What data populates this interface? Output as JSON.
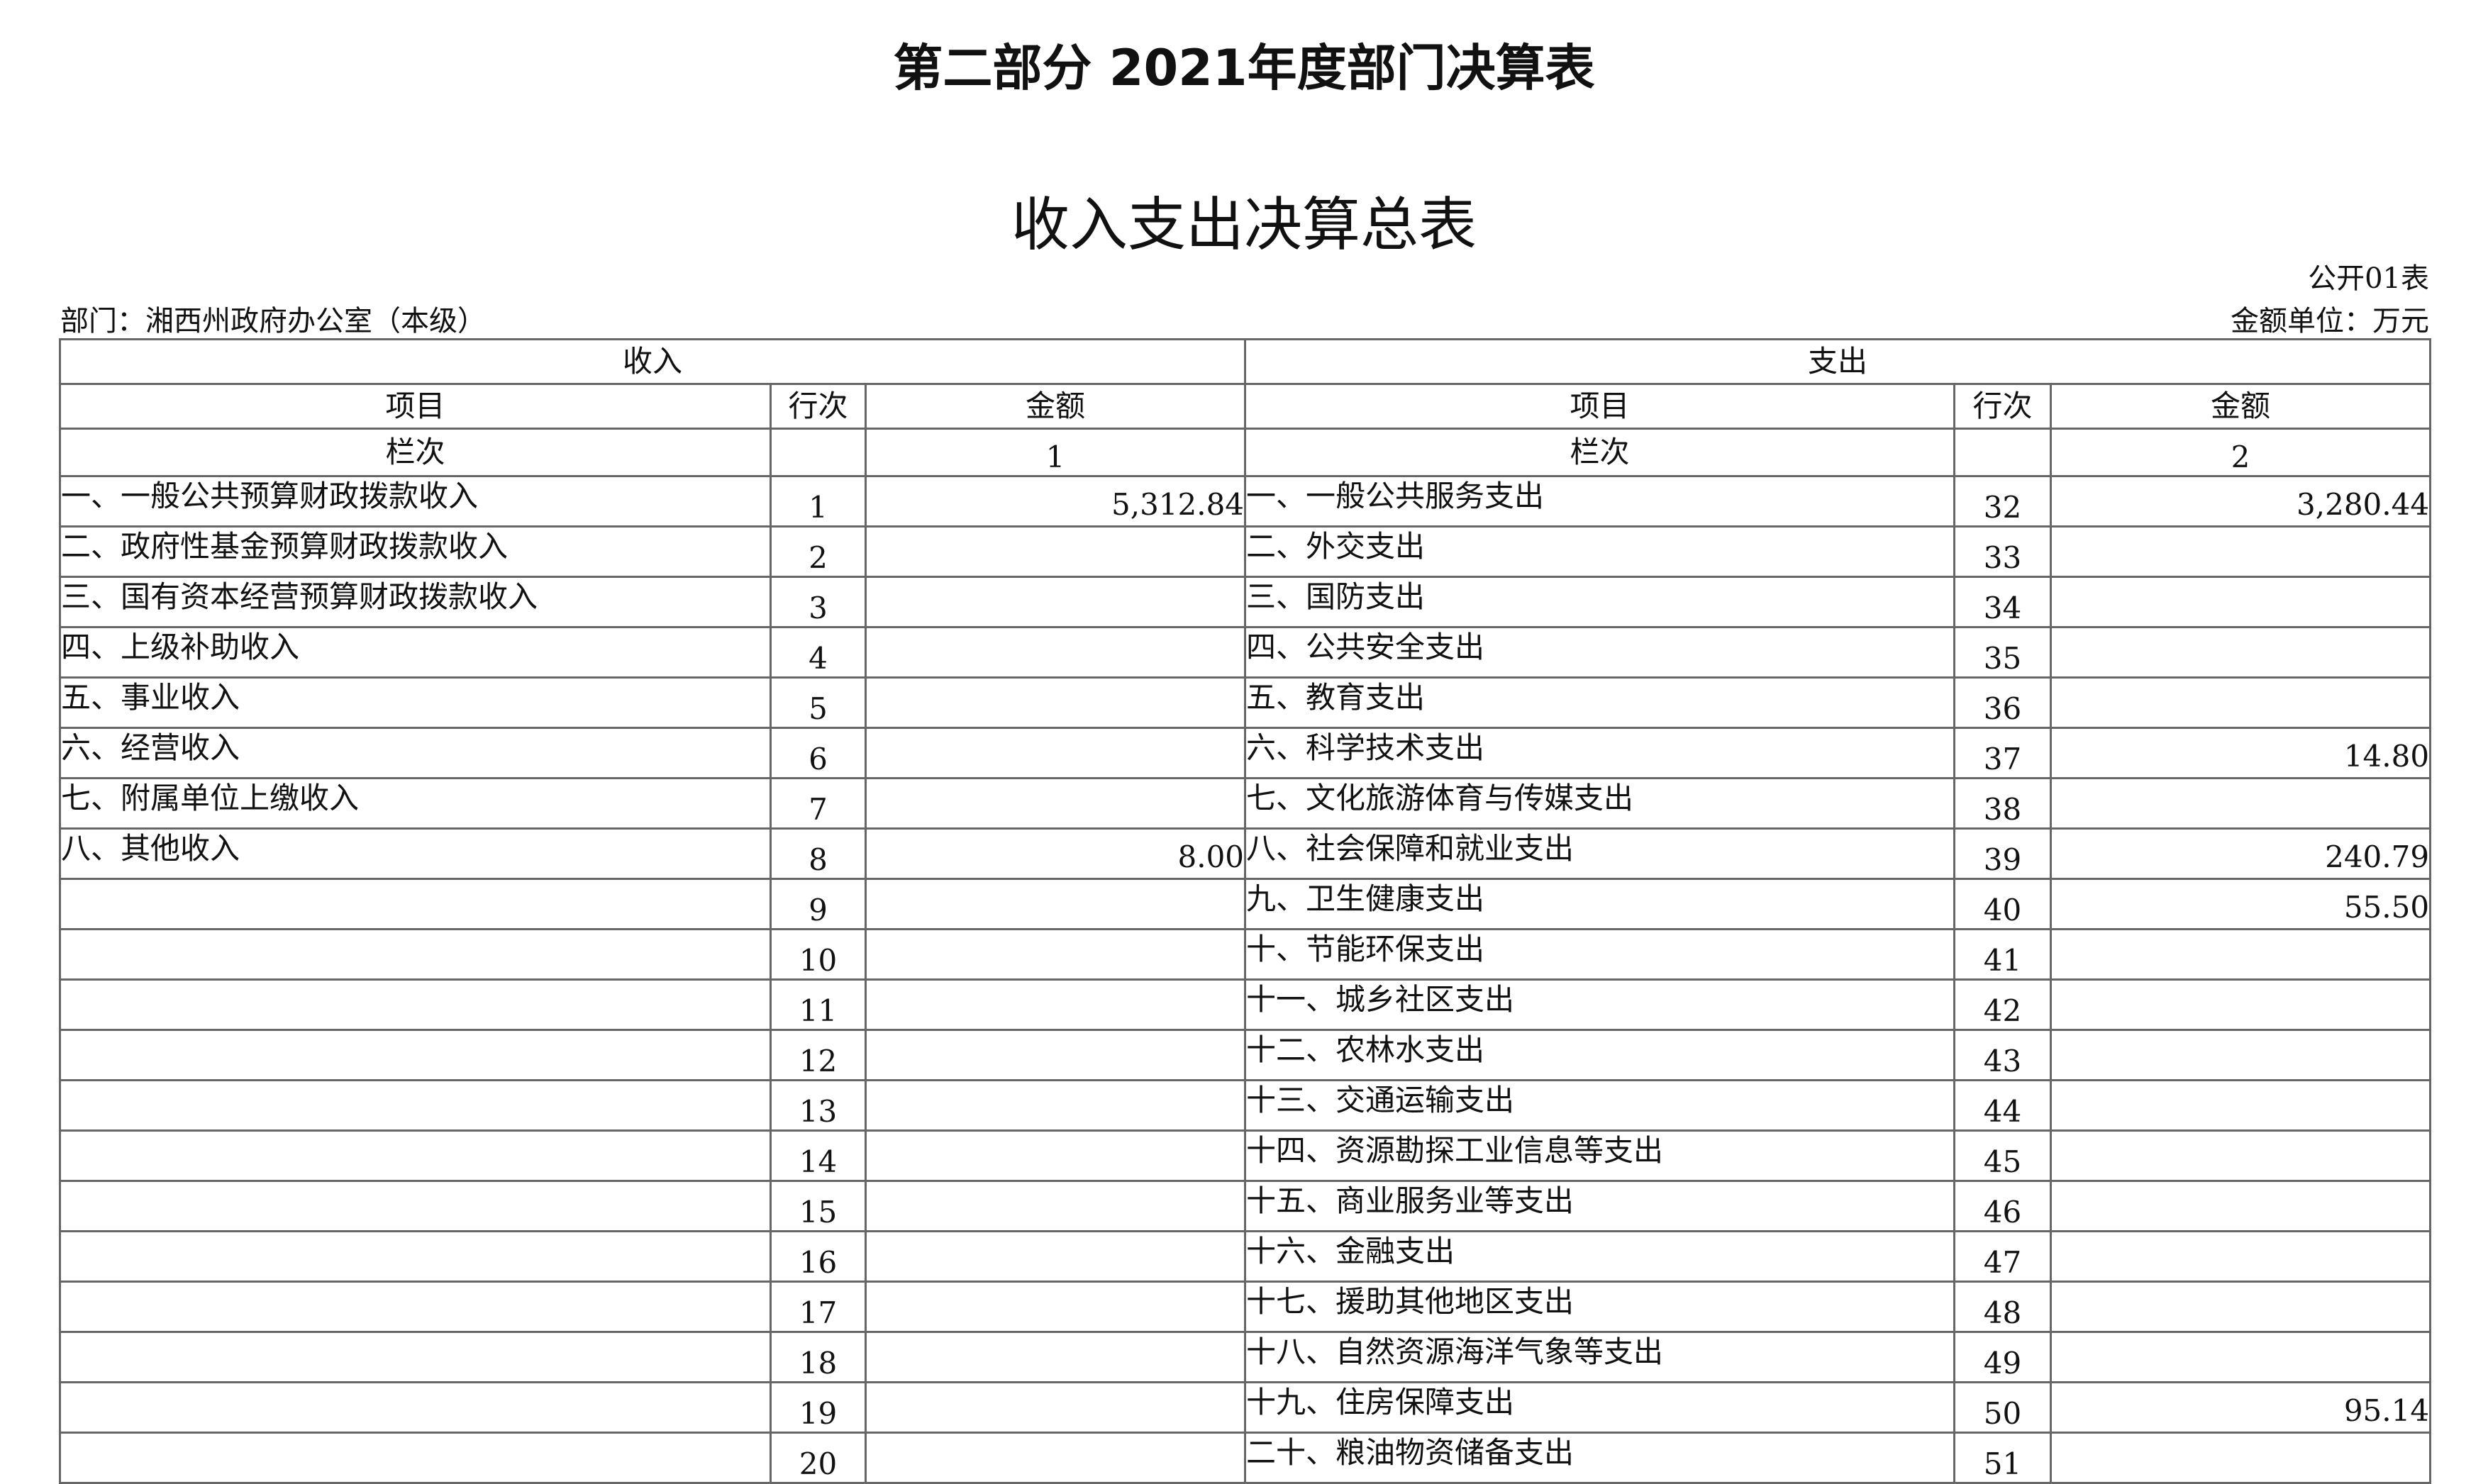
{
  "title": "第二部分 2021年度部门决算表",
  "subtitle": "收入支出决算总表",
  "table_code": "公开01表",
  "department": "部门：湘西州政府办公室（本级）",
  "unit": "金额单位：万元",
  "table": {
    "income_header": "收入",
    "expense_header": "支出",
    "col_item": "项目",
    "col_line": "行次",
    "col_amount": "金额",
    "col_index_label": "栏次",
    "income_col_index": "1",
    "expense_col_index": "2",
    "rows": [
      {
        "in_label": "一、一般公共预算财政拨款收入",
        "in_line": "1",
        "in_amount": "5,312.84",
        "ex_label": "一、一般公共服务支出",
        "ex_line": "32",
        "ex_amount": "3,280.44"
      },
      {
        "in_label": "二、政府性基金预算财政拨款收入",
        "in_line": "2",
        "in_amount": "",
        "ex_label": "二、外交支出",
        "ex_line": "33",
        "ex_amount": ""
      },
      {
        "in_label": "三、国有资本经营预算财政拨款收入",
        "in_line": "3",
        "in_amount": "",
        "ex_label": "三、国防支出",
        "ex_line": "34",
        "ex_amount": ""
      },
      {
        "in_label": "四、上级补助收入",
        "in_line": "4",
        "in_amount": "",
        "ex_label": "四、公共安全支出",
        "ex_line": "35",
        "ex_amount": ""
      },
      {
        "in_label": "五、事业收入",
        "in_line": "5",
        "in_amount": "",
        "ex_label": "五、教育支出",
        "ex_line": "36",
        "ex_amount": ""
      },
      {
        "in_label": "六、经营收入",
        "in_line": "6",
        "in_amount": "",
        "ex_label": "六、科学技术支出",
        "ex_line": "37",
        "ex_amount": "14.80"
      },
      {
        "in_label": "七、附属单位上缴收入",
        "in_line": "7",
        "in_amount": "",
        "ex_label": "七、文化旅游体育与传媒支出",
        "ex_line": "38",
        "ex_amount": ""
      },
      {
        "in_label": "八、其他收入",
        "in_line": "8",
        "in_amount": "8.00",
        "ex_label": "八、社会保障和就业支出",
        "ex_line": "39",
        "ex_amount": "240.79"
      },
      {
        "in_label": "",
        "in_line": "9",
        "in_amount": "",
        "ex_label": "九、卫生健康支出",
        "ex_line": "40",
        "ex_amount": "55.50"
      },
      {
        "in_label": "",
        "in_line": "10",
        "in_amount": "",
        "ex_label": "十、节能环保支出",
        "ex_line": "41",
        "ex_amount": ""
      },
      {
        "in_label": "",
        "in_line": "11",
        "in_amount": "",
        "ex_label": "十一、城乡社区支出",
        "ex_line": "42",
        "ex_amount": ""
      },
      {
        "in_label": "",
        "in_line": "12",
        "in_amount": "",
        "ex_label": "十二、农林水支出",
        "ex_line": "43",
        "ex_amount": ""
      },
      {
        "in_label": "",
        "in_line": "13",
        "in_amount": "",
        "ex_label": "十三、交通运输支出",
        "ex_line": "44",
        "ex_amount": ""
      },
      {
        "in_label": "",
        "in_line": "14",
        "in_amount": "",
        "ex_label": "十四、资源勘探工业信息等支出",
        "ex_line": "45",
        "ex_amount": ""
      },
      {
        "in_label": "",
        "in_line": "15",
        "in_amount": "",
        "ex_label": "十五、商业服务业等支出",
        "ex_line": "46",
        "ex_amount": ""
      },
      {
        "in_label": "",
        "in_line": "16",
        "in_amount": "",
        "ex_label": "十六、金融支出",
        "ex_line": "47",
        "ex_amount": ""
      },
      {
        "in_label": "",
        "in_line": "17",
        "in_amount": "",
        "ex_label": "十七、援助其他地区支出",
        "ex_line": "48",
        "ex_amount": ""
      },
      {
        "in_label": "",
        "in_line": "18",
        "in_amount": "",
        "ex_label": "十八、自然资源海洋气象等支出",
        "ex_line": "49",
        "ex_amount": ""
      },
      {
        "in_label": "",
        "in_line": "19",
        "in_amount": "",
        "ex_label": "十九、住房保障支出",
        "ex_line": "50",
        "ex_amount": "95.14"
      },
      {
        "in_label": "",
        "in_line": "20",
        "in_amount": "",
        "ex_label": "二十、粮油物资储备支出",
        "ex_line": "51",
        "ex_amount": ""
      }
    ]
  }
}
